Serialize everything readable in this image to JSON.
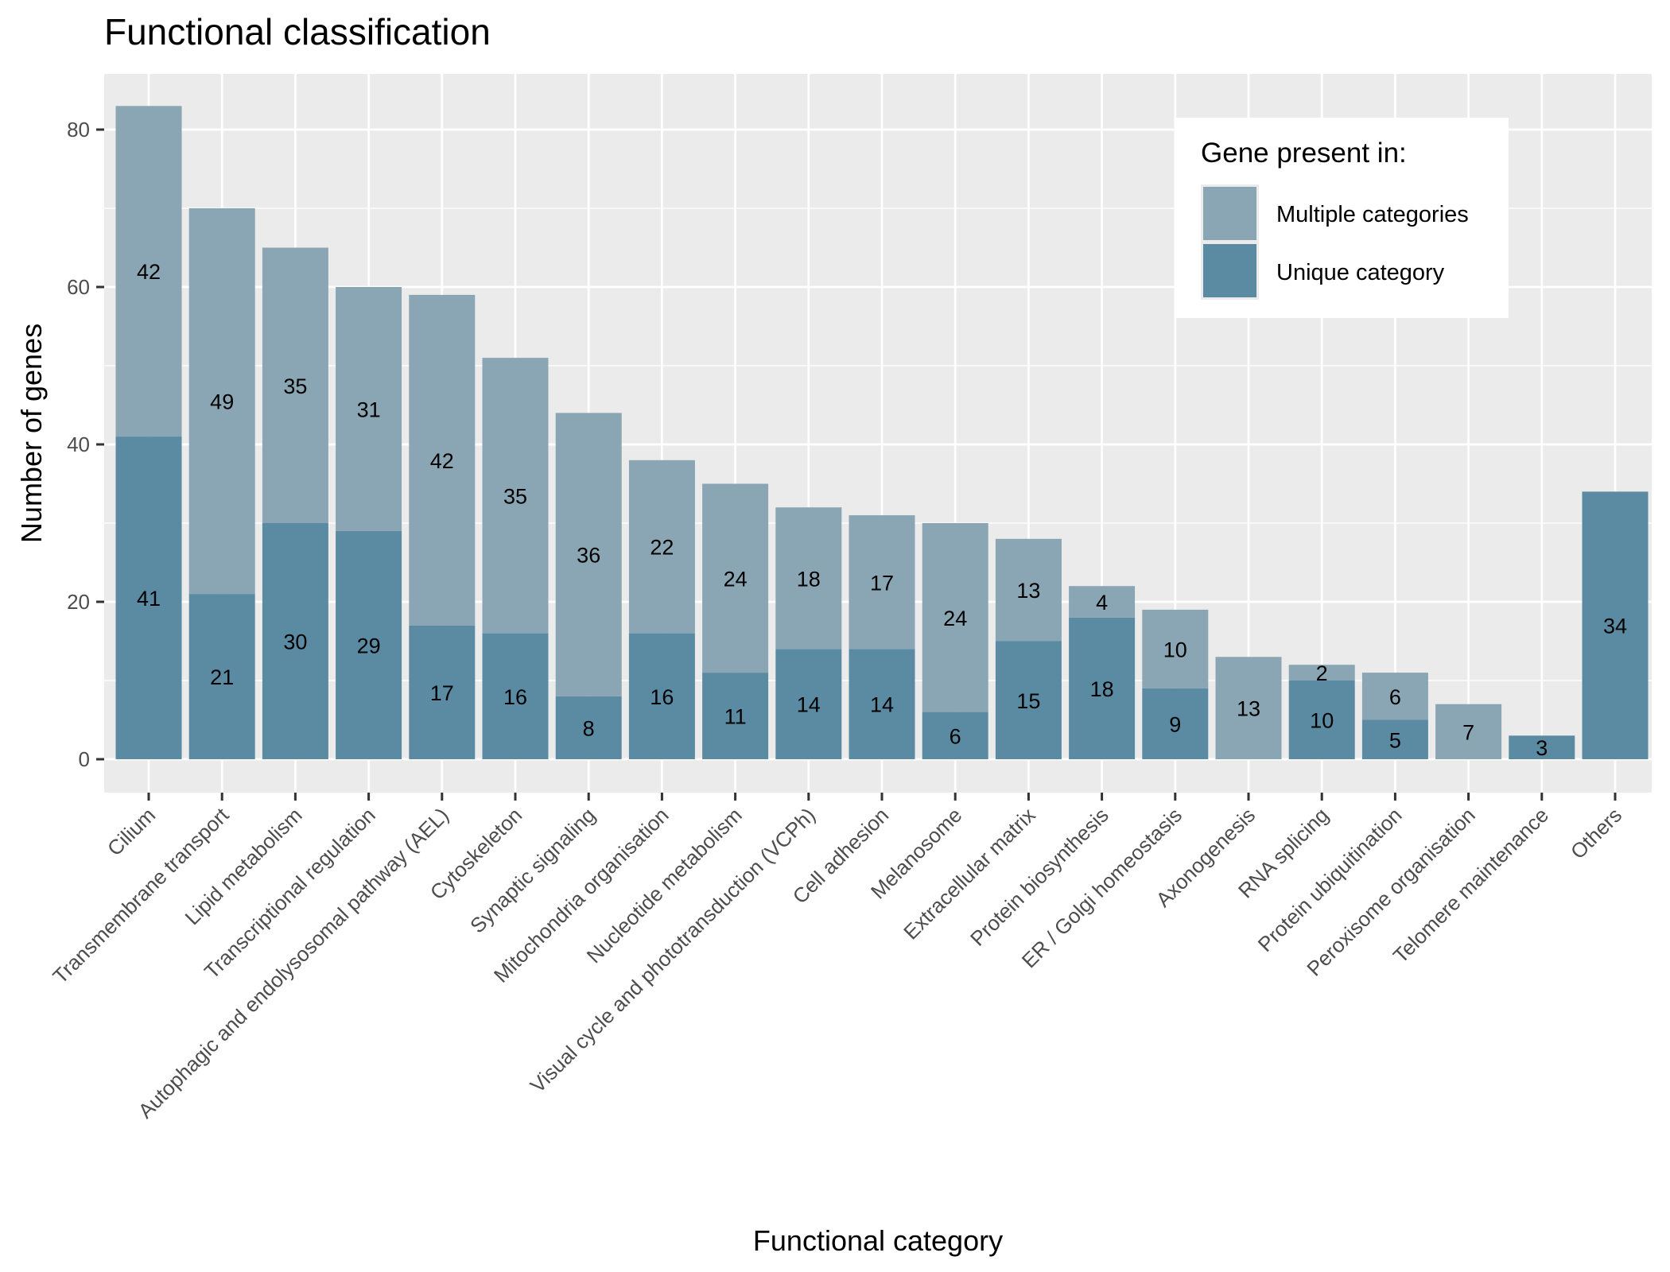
{
  "chart_data": {
    "type": "bar",
    "stacked": true,
    "title": "Functional classification",
    "xlabel": "Functional category",
    "ylabel": "Number of genes",
    "ylim": [
      0,
      87
    ],
    "yticks": [
      0,
      20,
      40,
      60,
      80
    ],
    "grid": true,
    "legend": {
      "title": "Gene present in:",
      "placement": "top-right",
      "entries": [
        {
          "name": "Multiple categories",
          "color": "#8AA6B4"
        },
        {
          "name": "Unique category",
          "color": "#5B8BA3"
        }
      ]
    },
    "categories": [
      "Cilium",
      "Transmembrane transport",
      "Lipid metabolism",
      "Transcriptional regulation",
      "Autophagic and endolysosomal pathway (AEL)",
      "Cytoskeleton",
      "Synaptic signaling",
      "Mitochondria organisation",
      "Nucleotide metabolism",
      "Visual cycle and phototransduction (VCPh)",
      "Cell adhesion",
      "Melanosome",
      "Extracellular matrix",
      "Protein biosynthesis",
      "ER / Golgi homeostasis",
      "Axonogenesis",
      "RNA splicing",
      "Protein ubiquitination",
      "Peroxisome organisation",
      "Telomere maintenance",
      "Others"
    ],
    "series": [
      {
        "name": "Unique category",
        "color": "#5B8BA3",
        "values": [
          41,
          21,
          30,
          29,
          17,
          16,
          8,
          16,
          11,
          14,
          14,
          6,
          15,
          18,
          9,
          0,
          10,
          5,
          0,
          3,
          34
        ]
      },
      {
        "name": "Multiple categories",
        "color": "#8AA6B4",
        "values": [
          42,
          49,
          35,
          31,
          42,
          35,
          36,
          22,
          24,
          18,
          17,
          24,
          13,
          4,
          10,
          13,
          2,
          6,
          7,
          0,
          0
        ]
      }
    ]
  },
  "colors": {
    "panel_background": "#EBEBEB",
    "grid": "#FFFFFF",
    "tick_text": "#4D4D4D",
    "tick_mark": "#333333"
  }
}
